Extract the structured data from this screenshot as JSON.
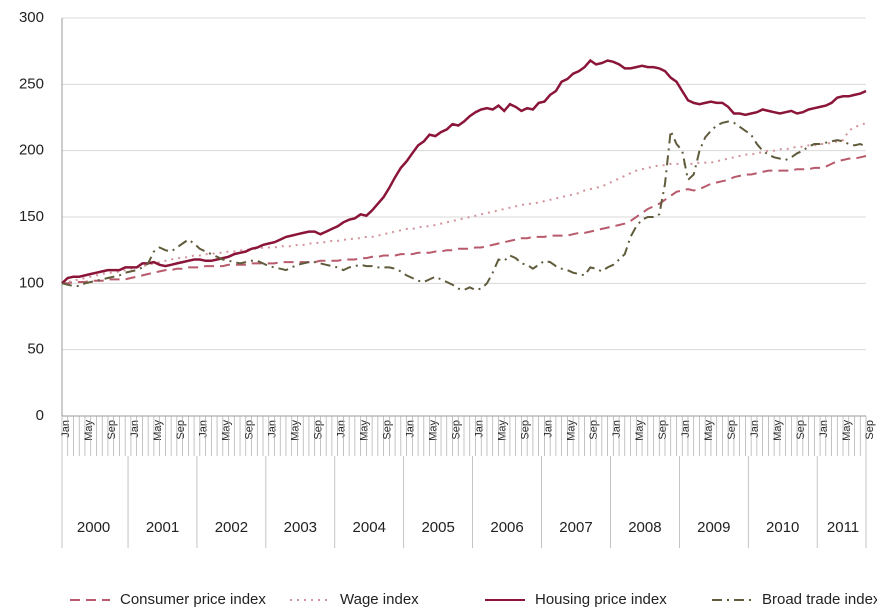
{
  "chart_data": {
    "type": "line",
    "categories": [
      "Jan",
      null,
      null,
      null,
      "May",
      null,
      null,
      null,
      "Sep",
      null,
      null,
      null,
      "Jan",
      null,
      null,
      null,
      "May",
      null,
      null,
      null,
      "Sep",
      null,
      null,
      null,
      "Jan",
      null,
      null,
      null,
      "May",
      null,
      null,
      null,
      "Sep",
      null,
      null,
      null,
      "Jan",
      null,
      null,
      null,
      "May",
      null,
      null,
      null,
      "Sep",
      null,
      null,
      null,
      "Jan",
      null,
      null,
      null,
      "May",
      null,
      null,
      null,
      "Sep",
      null,
      null,
      null,
      "Jan",
      null,
      null,
      null,
      "May",
      null,
      null,
      null,
      "Sep",
      null,
      null,
      null,
      "Jan",
      null,
      null,
      null,
      "May",
      null,
      null,
      null,
      "Sep",
      null,
      null,
      null,
      "Jan",
      null,
      null,
      null,
      "May",
      null,
      null,
      null,
      "Sep",
      null,
      null,
      null,
      "Jan",
      null,
      null,
      null,
      "May",
      null,
      null,
      null,
      "Sep",
      null,
      null,
      null,
      "Jan",
      null,
      null,
      null,
      "May",
      null,
      null,
      null,
      "Sep",
      null,
      null,
      null,
      "Jan",
      null,
      null,
      null,
      "May",
      null,
      null,
      null,
      "Sep",
      null,
      null,
      null,
      "Jan",
      null,
      null,
      null,
      "May",
      null,
      null,
      null,
      "Sep"
    ],
    "years": [
      "2000",
      "2001",
      "2002",
      "2003",
      "2004",
      "2005",
      "2006",
      "2007",
      "2008",
      "2009",
      "2010",
      "2011"
    ],
    "ylim": [
      0,
      300
    ],
    "yticks": [
      0,
      50,
      100,
      150,
      200,
      250,
      300
    ],
    "grid": true,
    "legend": "bottom",
    "series": [
      {
        "name": "Consumer price index",
        "color": "#b85a6c",
        "dash": "dashed",
        "values": [
          100,
          100,
          101,
          101,
          101,
          102,
          102,
          102,
          103,
          103,
          103,
          103,
          104,
          105,
          106,
          107,
          108,
          109,
          110,
          110,
          111,
          111,
          112,
          112,
          112,
          113,
          113,
          113,
          113,
          114,
          114,
          114,
          114,
          115,
          115,
          115,
          115,
          115,
          116,
          116,
          116,
          116,
          116,
          116,
          116,
          117,
          117,
          117,
          117,
          118,
          118,
          118,
          119,
          119,
          120,
          120,
          121,
          121,
          121,
          122,
          122,
          122,
          123,
          123,
          123,
          124,
          124,
          125,
          125,
          126,
          126,
          126,
          127,
          127,
          128,
          129,
          130,
          131,
          132,
          133,
          134,
          134,
          135,
          135,
          135,
          136,
          136,
          136,
          136,
          137,
          138,
          138,
          139,
          140,
          141,
          142,
          143,
          144,
          145,
          147,
          150,
          153,
          156,
          158,
          160,
          163,
          166,
          169,
          170,
          171,
          170,
          171,
          173,
          175,
          176,
          177,
          178,
          180,
          181,
          182,
          182,
          183,
          184,
          185,
          185,
          185,
          185,
          185,
          186,
          186,
          186,
          187,
          187,
          188,
          190,
          192,
          193,
          194,
          194,
          195,
          196
        ]
      },
      {
        "name": "Wage index",
        "color": "#d3939b",
        "dash": "dotted",
        "values": [
          100,
          101,
          102,
          103,
          104,
          105,
          106,
          107,
          108,
          108,
          109,
          110,
          111,
          112,
          113,
          114,
          115,
          116,
          117,
          118,
          119,
          119,
          120,
          121,
          121,
          122,
          122,
          123,
          123,
          124,
          124,
          125,
          125,
          126,
          126,
          127,
          127,
          127,
          128,
          128,
          128,
          129,
          129,
          130,
          130,
          131,
          131,
          132,
          132,
          133,
          133,
          134,
          134,
          135,
          135,
          136,
          137,
          138,
          139,
          140,
          141,
          141,
          142,
          143,
          143,
          144,
          145,
          146,
          147,
          148,
          149,
          150,
          151,
          152,
          153,
          154,
          155,
          156,
          157,
          158,
          159,
          160,
          160,
          161,
          162,
          163,
          164,
          165,
          166,
          167,
          168,
          170,
          171,
          172,
          173,
          175,
          177,
          179,
          181,
          183,
          185,
          186,
          187,
          188,
          189,
          189,
          190,
          190,
          190,
          190,
          190,
          191,
          191,
          191,
          192,
          193,
          194,
          195,
          196,
          197,
          197,
          198,
          199,
          200,
          200,
          201,
          201,
          202,
          203,
          203,
          204,
          204,
          205,
          205,
          206,
          207,
          208,
          215,
          218,
          219,
          221
        ]
      },
      {
        "name": "Housing price index",
        "color": "#8a1538",
        "dash": "solid",
        "values": [
          100,
          104,
          105,
          105,
          106,
          107,
          108,
          109,
          110,
          110,
          110,
          112,
          112,
          112,
          115,
          115,
          116,
          114,
          113,
          114,
          115,
          116,
          117,
          118,
          118,
          117,
          117,
          118,
          119,
          120,
          122,
          123,
          124,
          126,
          127,
          129,
          130,
          131,
          133,
          135,
          136,
          137,
          138,
          139,
          139,
          137,
          139,
          141,
          143,
          146,
          148,
          149,
          152,
          151,
          155,
          160,
          165,
          172,
          180,
          187,
          192,
          198,
          204,
          207,
          212,
          211,
          214,
          216,
          220,
          219,
          222,
          226,
          229,
          231,
          232,
          231,
          234,
          230,
          235,
          233,
          230,
          232,
          231,
          236,
          237,
          242,
          245,
          252,
          254,
          258,
          260,
          263,
          268,
          265,
          266,
          268,
          267,
          265,
          262,
          262,
          263,
          264,
          263,
          263,
          262,
          260,
          255,
          252,
          245,
          238,
          236,
          235,
          236,
          237,
          236,
          236,
          233,
          228,
          228,
          227,
          228,
          229,
          231,
          230,
          229,
          228,
          229,
          230,
          228,
          229,
          231,
          232,
          233,
          234,
          236,
          240,
          241,
          241,
          242,
          243,
          245
        ]
      },
      {
        "name": "Broad trade index",
        "color": "#5f5b3b",
        "dash": "dashdot",
        "values": [
          100,
          99,
          98,
          98,
          100,
          101,
          102,
          103,
          104,
          105,
          106,
          108,
          109,
          110,
          112,
          115,
          124,
          127,
          125,
          124,
          127,
          130,
          133,
          130,
          126,
          124,
          122,
          120,
          118,
          117,
          116,
          115,
          116,
          117,
          117,
          115,
          113,
          112,
          111,
          110,
          112,
          114,
          115,
          116,
          116,
          115,
          114,
          113,
          112,
          110,
          112,
          113,
          114,
          113,
          113,
          112,
          112,
          112,
          111,
          109,
          106,
          104,
          102,
          101,
          103,
          105,
          103,
          101,
          99,
          96,
          95,
          97,
          95,
          96,
          100,
          108,
          118,
          117,
          121,
          119,
          115,
          114,
          111,
          114,
          117,
          116,
          113,
          111,
          110,
          108,
          107,
          106,
          112,
          111,
          109,
          112,
          114,
          118,
          122,
          135,
          143,
          148,
          150,
          150,
          152,
          175,
          215,
          205,
          200,
          178,
          182,
          200,
          210,
          215,
          219,
          221,
          222,
          221,
          218,
          215,
          212,
          205,
          200,
          197,
          195,
          194,
          193,
          195,
          198,
          200,
          203,
          205,
          205,
          206,
          207,
          208,
          207,
          205,
          204,
          205,
          203
        ]
      }
    ]
  }
}
